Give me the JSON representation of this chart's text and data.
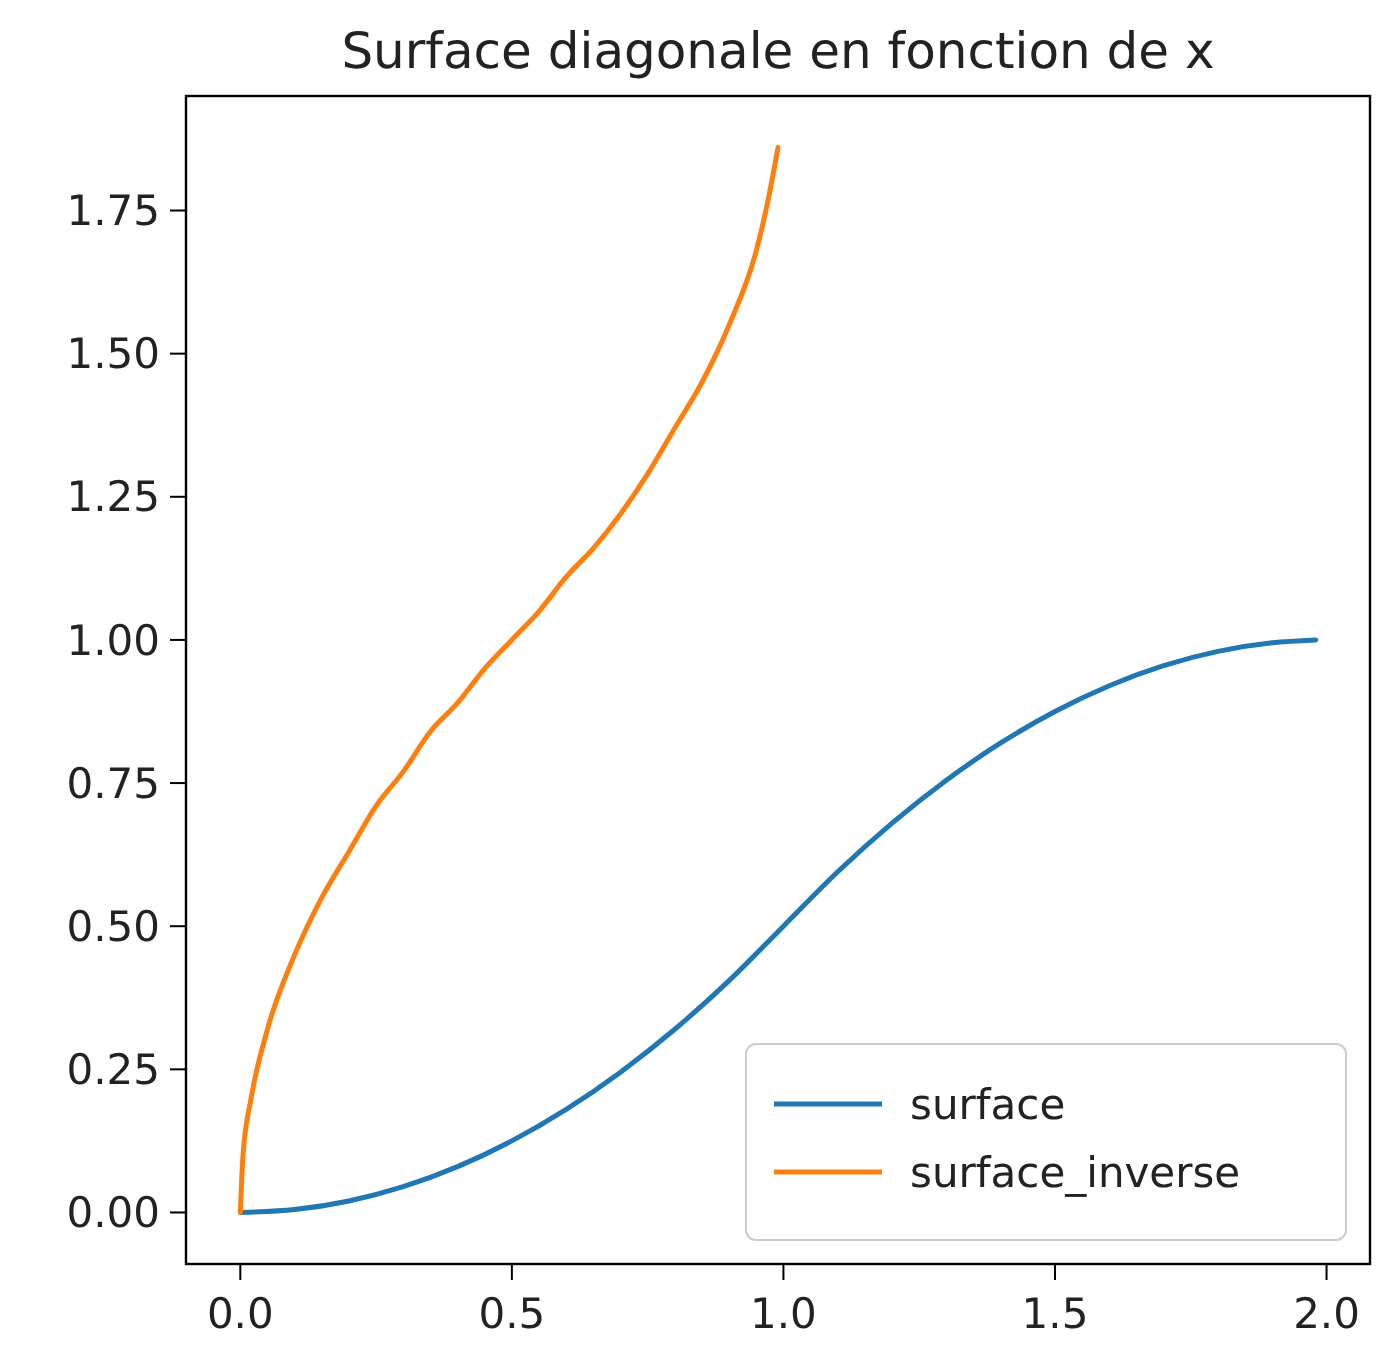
{
  "chart_data": {
    "type": "line",
    "title": "Surface diagonale en fonction de x",
    "series": [
      {
        "name": "surface",
        "color": "#1f77b4",
        "x": [
          0,
          0.1,
          0.2,
          0.3,
          0.4,
          0.5,
          0.6,
          0.7,
          0.8,
          0.9,
          1.0,
          1.1,
          1.2,
          1.3,
          1.4,
          1.5,
          1.6,
          1.7,
          1.8,
          1.9,
          1.98
        ],
        "values": [
          0,
          0.005,
          0.02,
          0.045,
          0.08,
          0.125,
          0.18,
          0.245,
          0.32,
          0.405,
          0.5,
          0.595,
          0.68,
          0.755,
          0.82,
          0.875,
          0.92,
          0.955,
          0.98,
          0.995,
          1.0
        ]
      },
      {
        "name": "surface_inverse",
        "color": "#ff7f0e",
        "x": [
          0,
          0.005,
          0.02,
          0.05,
          0.1,
          0.15,
          0.2,
          0.25,
          0.3,
          0.35,
          0.4,
          0.45,
          0.5,
          0.55,
          0.6,
          0.65,
          0.7,
          0.75,
          0.8,
          0.85,
          0.9,
          0.95,
          0.97,
          0.99
        ],
        "values": [
          0,
          0.1,
          0.2,
          0.32,
          0.45,
          0.55,
          0.63,
          0.71,
          0.77,
          0.84,
          0.89,
          0.95,
          1.0,
          1.05,
          1.11,
          1.16,
          1.22,
          1.29,
          1.37,
          1.45,
          1.55,
          1.68,
          1.76,
          1.86
        ]
      }
    ],
    "xlim": [
      -0.1,
      2.08
    ],
    "ylim": [
      -0.09,
      1.95
    ],
    "xticks": [
      {
        "value": 0,
        "label": "0.0"
      },
      {
        "value": 0.5,
        "label": "0.5"
      },
      {
        "value": 1,
        "label": "1.0"
      },
      {
        "value": 1.5,
        "label": "1.5"
      },
      {
        "value": 2,
        "label": "2.0"
      }
    ],
    "yticks": [
      {
        "value": 0,
        "label": "0.00"
      },
      {
        "value": 0.25,
        "label": "0.25"
      },
      {
        "value": 0.5,
        "label": "0.50"
      },
      {
        "value": 0.75,
        "label": "0.75"
      },
      {
        "value": 1,
        "label": "1.00"
      },
      {
        "value": 1.25,
        "label": "1.25"
      },
      {
        "value": 1.5,
        "label": "1.50"
      },
      {
        "value": 1.75,
        "label": "1.75"
      }
    ],
    "legend": "bottom right",
    "line_style": "solid",
    "marker": "none",
    "grid": false
  }
}
